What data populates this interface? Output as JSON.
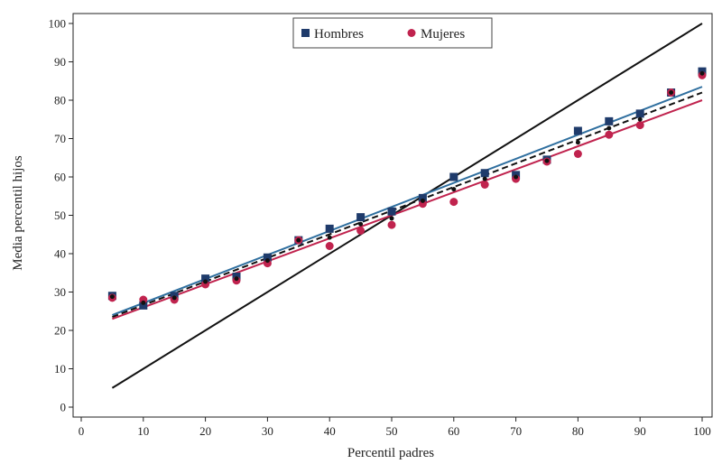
{
  "chart_data": {
    "type": "scatter",
    "xlabel": "Percentil padres",
    "ylabel": "Media percentil hijos",
    "xlim": [
      0,
      100
    ],
    "ylim": [
      0,
      100
    ],
    "xticks": [
      0,
      10,
      20,
      30,
      40,
      50,
      60,
      70,
      80,
      90,
      100
    ],
    "yticks": [
      0,
      10,
      20,
      30,
      40,
      50,
      60,
      70,
      80,
      90,
      100
    ],
    "grid": false,
    "legend": {
      "placement": "top-center",
      "entries": [
        "Hombres",
        "Mujeres"
      ]
    },
    "series": [
      {
        "name": "Hombres",
        "marker": "square",
        "color": "#1f3b6b",
        "x": [
          5,
          10,
          15,
          20,
          25,
          30,
          35,
          40,
          45,
          50,
          55,
          60,
          65,
          70,
          75,
          80,
          85,
          90,
          95,
          100
        ],
        "y": [
          29,
          26.5,
          29,
          33.5,
          34,
          39,
          43.5,
          46.5,
          49.5,
          51,
          54.5,
          60,
          61,
          60.5,
          64.5,
          72,
          74.5,
          76.5,
          82,
          87.5
        ]
      },
      {
        "name": "Mujeres",
        "marker": "circle",
        "color": "#c0234e",
        "x": [
          5,
          10,
          15,
          20,
          25,
          30,
          35,
          40,
          45,
          50,
          55,
          60,
          65,
          70,
          75,
          80,
          85,
          90,
          95,
          100
        ],
        "y": [
          28.5,
          28,
          28,
          32,
          33,
          37.5,
          43.5,
          42,
          46,
          47.5,
          53,
          53.5,
          58,
          59.5,
          64,
          66,
          71,
          73.5,
          82,
          86.5
        ]
      },
      {
        "marker": "dot",
        "color": "#111111",
        "x": [
          5,
          10,
          15,
          20,
          25,
          30,
          35,
          40,
          45,
          50,
          55,
          60,
          65,
          70,
          75,
          80,
          85,
          90,
          95,
          100
        ],
        "y": [
          28.8,
          27.2,
          28.5,
          32.7,
          33.5,
          38.2,
          43.5,
          44.2,
          47.7,
          49.2,
          53.8,
          56.8,
          59.5,
          60,
          64.2,
          69,
          72.7,
          75,
          82,
          87
        ]
      }
    ],
    "fit_lines": [
      {
        "color": "#2f6f9f",
        "dash": "solid",
        "x": [
          5,
          100
        ],
        "y": [
          24,
          83.5
        ]
      },
      {
        "color": "#111111",
        "dash": "dashed",
        "x": [
          5,
          100
        ],
        "y": [
          23.5,
          82
        ]
      },
      {
        "color": "#c0234e",
        "dash": "solid",
        "x": [
          5,
          100
        ],
        "y": [
          23,
          80
        ]
      }
    ],
    "reference_line": {
      "color": "#111111",
      "x": [
        5,
        100
      ],
      "y": [
        5,
        100
      ]
    }
  }
}
